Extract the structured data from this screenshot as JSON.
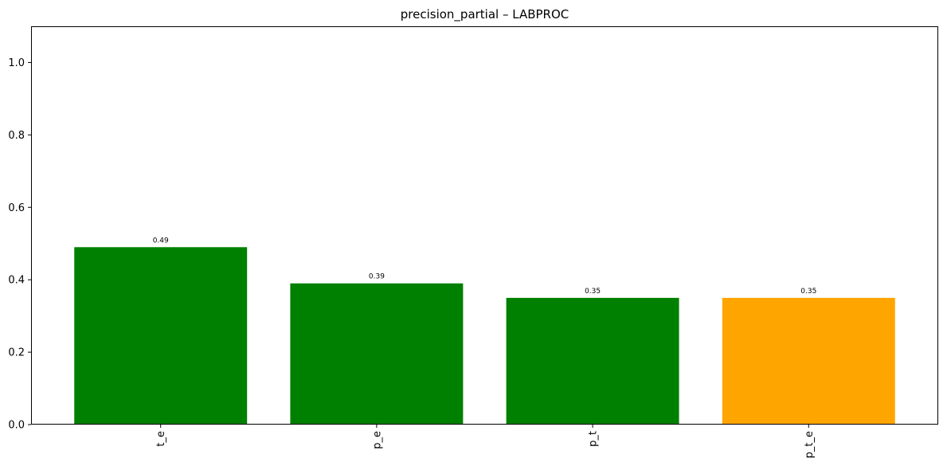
{
  "chart_data": {
    "type": "bar",
    "title": "precision_partial – LABPROC",
    "xlabel": "",
    "ylabel": "",
    "categories": [
      "t_e",
      "p_e",
      "p_t",
      "p_t_e"
    ],
    "values": [
      0.49,
      0.39,
      0.35,
      0.35
    ],
    "value_labels": [
      "0.49",
      "0.39",
      "0.35",
      "0.35"
    ],
    "bar_colors": [
      "#008000",
      "#008000",
      "#008000",
      "#FFA500"
    ],
    "ylim": [
      0,
      1.1
    ],
    "yticks": [
      0.0,
      0.2,
      0.4,
      0.6,
      0.8,
      1.0
    ],
    "ytick_labels": [
      "0.0",
      "0.2",
      "0.4",
      "0.6",
      "0.8",
      "1.0"
    ],
    "grid": false,
    "legend": "none"
  }
}
